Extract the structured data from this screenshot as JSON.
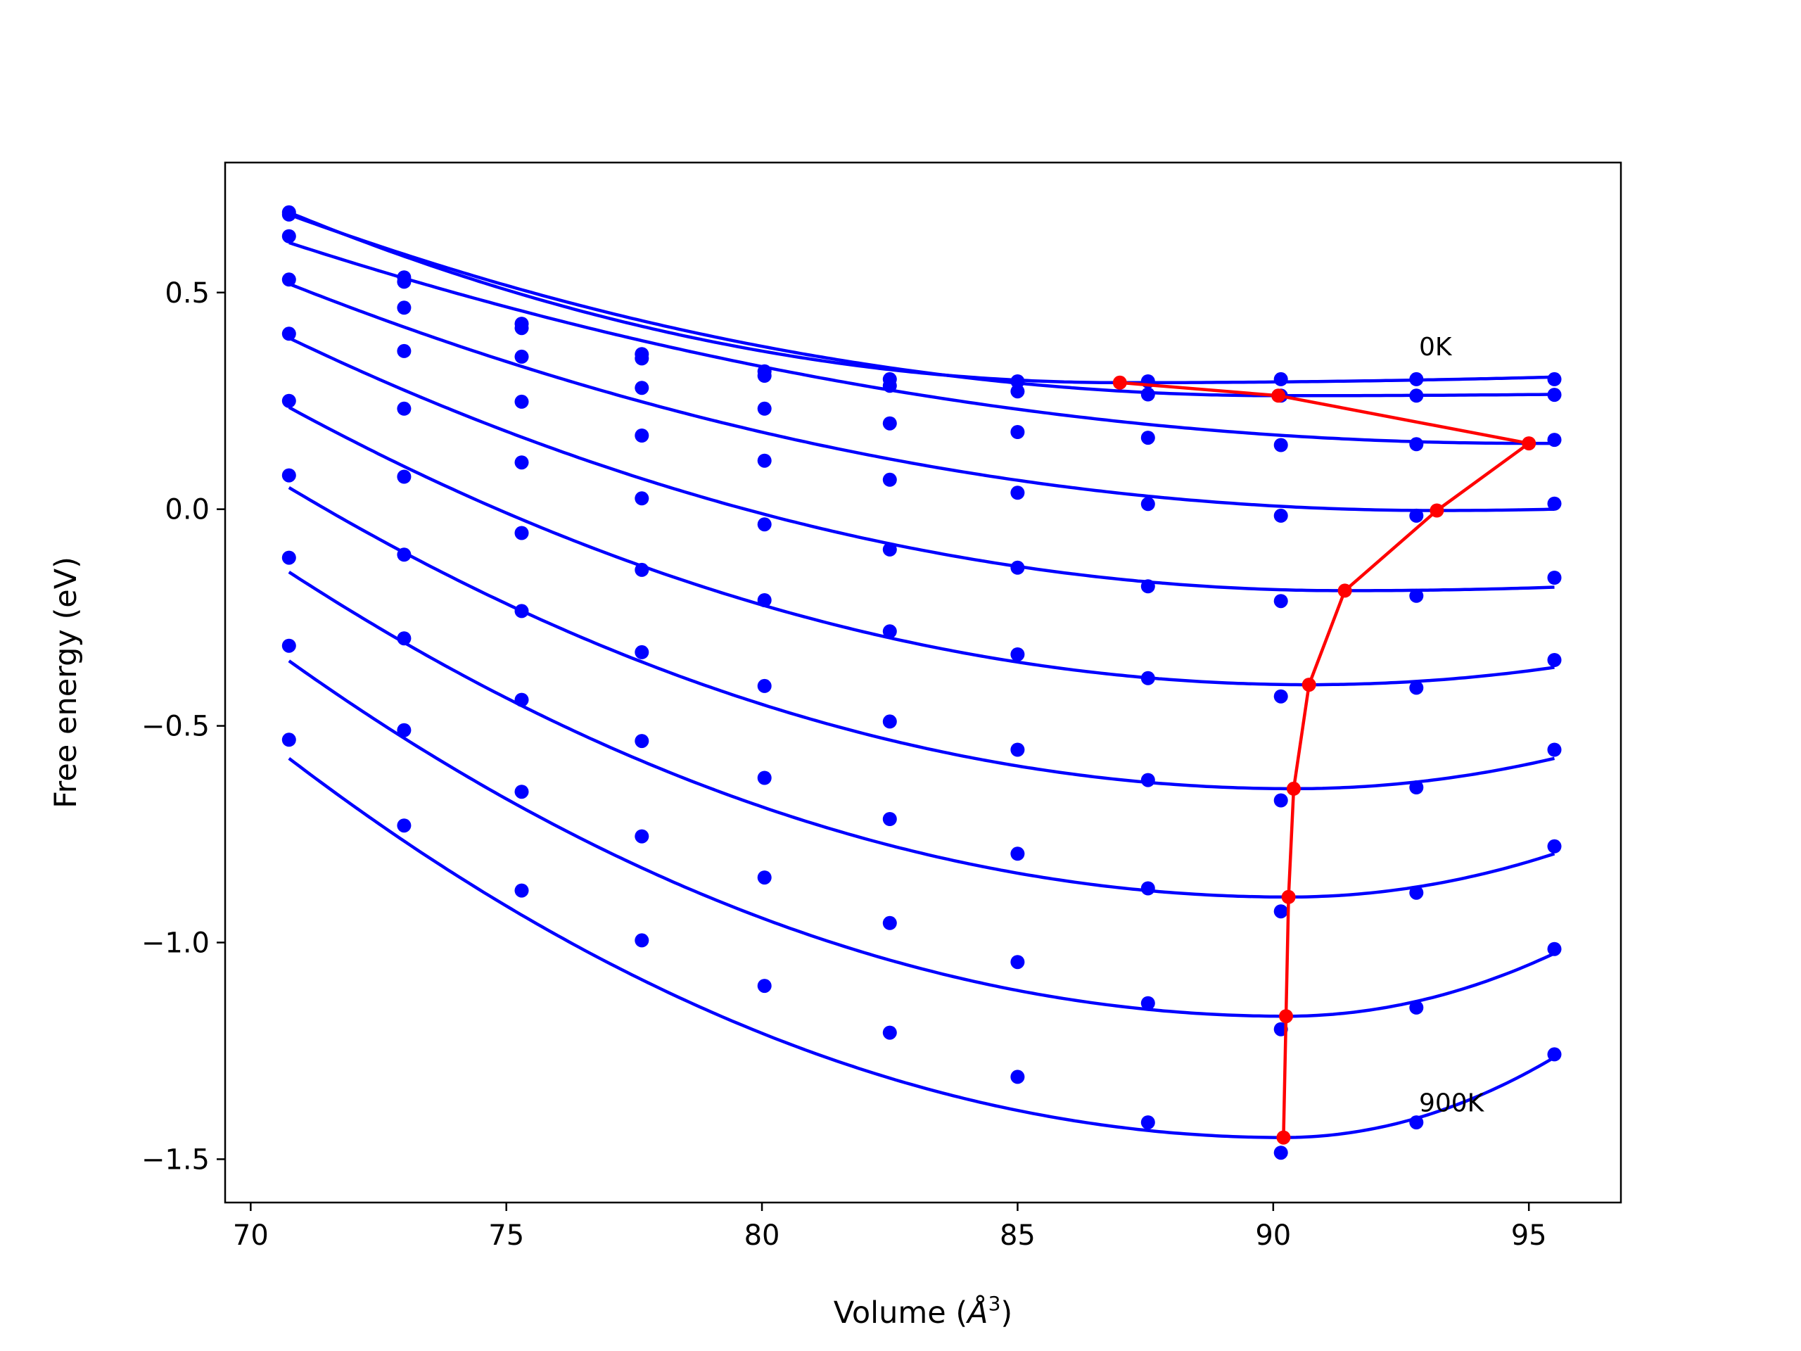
{
  "chart_data": {
    "type": "line",
    "title": "",
    "xlabel_prefix": "Volume (",
    "xlabel_symbol": "Å",
    "xlabel_exponent": "3",
    "xlabel_suffix": ")",
    "ylabel": "Free energy (eV)",
    "xlim": [
      69.5,
      96.8
    ],
    "ylim": [
      -1.6,
      0.8
    ],
    "xticks": [
      70,
      75,
      80,
      85,
      90,
      95
    ],
    "xtick_labels": [
      "70",
      "75",
      "80",
      "85",
      "90",
      "95"
    ],
    "yticks": [
      0.5,
      0.0,
      -0.5,
      -1.0,
      -1.5
    ],
    "ytick_labels": [
      "0.5",
      "0.0",
      "−0.5",
      "−1.0",
      "−1.5"
    ],
    "grid": false,
    "colors": {
      "curves": "#0000ff",
      "minimum_path": "#ff0000",
      "axes": "#000000"
    },
    "volumes": [
      70.75,
      73.0,
      75.3,
      77.65,
      80.05,
      82.5,
      85.0,
      87.55,
      90.15,
      92.8,
      95.5
    ],
    "series": [
      {
        "points": [
          0.685,
          0.535,
          0.428,
          0.358,
          0.318,
          0.3,
          0.295,
          0.295,
          0.3,
          0.3,
          0.3
        ],
        "fit_min": [
          87.0,
          0.292
        ],
        "fit_ends": [
          0.685,
          0.305
        ]
      },
      {
        "points": [
          0.68,
          0.525,
          0.418,
          0.348,
          0.308,
          0.285,
          0.272,
          0.265,
          0.262,
          0.262,
          0.264
        ],
        "fit_min": [
          90.1,
          0.262
        ],
        "fit_ends": [
          0.68,
          0.265
        ]
      },
      {
        "points": [
          0.63,
          0.465,
          0.352,
          0.28,
          0.232,
          0.198,
          0.178,
          0.165,
          0.148,
          0.15,
          0.16
        ],
        "fit_min": [
          95.0,
          0.152
        ],
        "fit_ends": [
          0.615,
          0.152
        ]
      },
      {
        "points": [
          0.53,
          0.365,
          0.248,
          0.17,
          0.112,
          0.068,
          0.038,
          0.012,
          -0.015,
          -0.015,
          0.013
        ],
        "fit_min": [
          93.2,
          -0.003
        ],
        "fit_ends": [
          0.52,
          0.0
        ]
      },
      {
        "points": [
          0.405,
          0.232,
          0.108,
          0.025,
          -0.035,
          -0.093,
          -0.135,
          -0.178,
          -0.212,
          -0.2,
          -0.158
        ],
        "fit_min": [
          91.4,
          -0.188
        ],
        "fit_ends": [
          0.395,
          -0.18
        ]
      },
      {
        "points": [
          0.25,
          0.075,
          -0.055,
          -0.14,
          -0.21,
          -0.282,
          -0.335,
          -0.39,
          -0.432,
          -0.412,
          -0.348
        ],
        "fit_min": [
          90.7,
          -0.405
        ],
        "fit_ends": [
          0.235,
          -0.365
        ]
      },
      {
        "points": [
          0.078,
          -0.105,
          -0.235,
          -0.33,
          -0.408,
          -0.49,
          -0.555,
          -0.625,
          -0.672,
          -0.642,
          -0.555
        ],
        "fit_min": [
          90.4,
          -0.645
        ],
        "fit_ends": [
          0.05,
          -0.575
        ]
      },
      {
        "points": [
          -0.112,
          -0.298,
          -0.44,
          -0.535,
          -0.62,
          -0.715,
          -0.795,
          -0.875,
          -0.928,
          -0.885,
          -0.778
        ],
        "fit_min": [
          90.3,
          -0.895
        ],
        "fit_ends": [
          -0.145,
          -0.795
        ]
      },
      {
        "points": [
          -0.315,
          -0.51,
          -0.652,
          -0.755,
          -0.85,
          -0.955,
          -1.045,
          -1.14,
          -1.2,
          -1.15,
          -1.015
        ],
        "fit_min": [
          90.25,
          -1.17
        ],
        "fit_ends": [
          -0.35,
          -1.025
        ]
      },
      {
        "points": [
          -0.532,
          -0.73,
          -0.88,
          -0.995,
          -1.1,
          -1.208,
          -1.31,
          -1.415,
          -1.485,
          -1.415,
          -1.258
        ],
        "fit_min": [
          90.2,
          -1.45
        ],
        "fit_ends": [
          -0.575,
          -1.265
        ]
      }
    ],
    "minimum_path": {
      "x": [
        87.0,
        90.1,
        95.0,
        93.2,
        91.4,
        90.7,
        90.4,
        90.3,
        90.25,
        90.2
      ],
      "y": [
        0.292,
        0.262,
        0.152,
        -0.003,
        -0.188,
        -0.405,
        -0.645,
        -0.895,
        -1.17,
        -1.45
      ]
    },
    "annotations": [
      {
        "text": "0K",
        "x": 92.85,
        "y": 0.355
      },
      {
        "text": "900K",
        "x": 92.85,
        "y": -1.39
      }
    ]
  }
}
